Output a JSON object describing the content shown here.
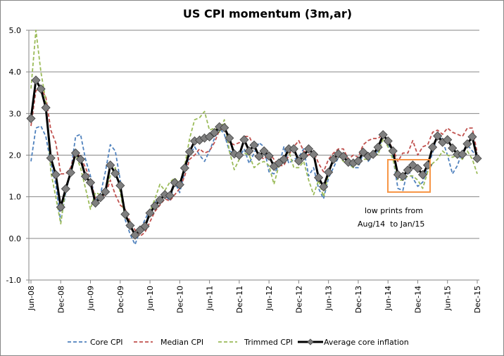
{
  "chart_data": {
    "type": "line",
    "title": "US CPI momentum (3m,ar)",
    "xlabel": "",
    "ylabel": "",
    "ylim": [
      -1.0,
      5.0
    ],
    "y_ticks": [
      "5.0",
      "4.0",
      "3.0",
      "2.0",
      "1.0",
      "0.0",
      "-1.0"
    ],
    "y_tick_values": [
      5,
      4,
      3,
      2,
      1,
      0,
      -1
    ],
    "x_ticks": [
      "Jun-08",
      "Dec-08",
      "Jun-09",
      "Dec-09",
      "Jun-10",
      "Dec-10",
      "Jun-11",
      "Dec-11",
      "Jun-12",
      "Dec-12",
      "Jun-13",
      "Dec-13",
      "Jun-14",
      "Dec-14",
      "Jun-15",
      "Dec-15"
    ],
    "x_start": "Jun-08",
    "x_end": "Dec-15",
    "frequency": "monthly",
    "grid": true,
    "legend_position": "bottom",
    "series": [
      {
        "name": "Core CPI",
        "color": "#4F81BD",
        "style": "dashed",
        "values": [
          1.85,
          2.65,
          2.7,
          2.45,
          1.8,
          1.3,
          0.4,
          1.1,
          1.6,
          2.45,
          2.5,
          1.9,
          1.5,
          0.9,
          1.05,
          1.6,
          2.25,
          2.1,
          1.4,
          0.45,
          0.1,
          -0.15,
          0.2,
          0.45,
          0.7,
          0.85,
          1.0,
          1.05,
          0.9,
          1.35,
          1.1,
          1.6,
          2.0,
          2.2,
          2.0,
          1.85,
          2.1,
          2.4,
          2.65,
          2.5,
          2.1,
          2.05,
          1.95,
          2.15,
          1.8,
          2.05,
          2.3,
          2.2,
          1.6,
          1.55,
          1.75,
          2.2,
          1.8,
          1.9,
          1.95,
          2.15,
          1.5,
          1.7,
          1.2,
          0.95,
          1.45,
          1.7,
          1.95,
          2.0,
          1.8,
          1.7,
          1.7,
          2.05,
          1.85,
          2.0,
          2.1,
          2.45,
          2.3,
          1.95,
          1.2,
          1.15,
          1.65,
          1.45,
          1.25,
          1.35,
          1.7,
          2.05,
          2.5,
          2.35,
          2.0,
          1.55,
          1.75,
          2.1,
          2.25,
          2.1,
          1.95
        ]
      },
      {
        "name": "Median CPI",
        "color": "#C0504D",
        "style": "dashed",
        "values": [
          2.7,
          3.55,
          3.6,
          3.4,
          2.6,
          2.3,
          1.55,
          1.55,
          1.7,
          2.1,
          1.95,
          1.7,
          1.4,
          0.95,
          1.0,
          1.05,
          1.4,
          1.05,
          0.8,
          0.7,
          0.4,
          0.2,
          0.05,
          0.15,
          0.4,
          0.65,
          0.8,
          0.95,
          0.9,
          1.05,
          1.2,
          1.5,
          1.9,
          2.0,
          2.15,
          2.05,
          2.1,
          2.3,
          2.6,
          2.65,
          2.3,
          2.25,
          2.3,
          2.45,
          2.45,
          2.2,
          2.0,
          1.9,
          2.05,
          1.9,
          1.75,
          1.75,
          2.0,
          2.2,
          2.35,
          2.1,
          2.0,
          2.1,
          1.8,
          1.6,
          1.9,
          2.05,
          2.15,
          2.15,
          1.9,
          2.0,
          1.95,
          2.25,
          2.35,
          2.4,
          2.4,
          2.5,
          2.35,
          2.15,
          1.85,
          2.05,
          2.05,
          2.35,
          2.0,
          2.2,
          2.25,
          2.55,
          2.6,
          2.5,
          2.65,
          2.55,
          2.5,
          2.45,
          2.65,
          2.65,
          2.05
        ]
      },
      {
        "name": "Trimmed CPI",
        "color": "#9BBB59",
        "style": "dashed",
        "values": [
          3.6,
          5.0,
          4.0,
          3.3,
          1.6,
          1.0,
          0.35,
          1.2,
          1.55,
          2.0,
          1.7,
          1.2,
          0.7,
          1.1,
          1.05,
          1.15,
          1.5,
          1.7,
          1.1,
          0.5,
          0.4,
          0.05,
          0.2,
          0.3,
          0.65,
          0.95,
          1.3,
          1.15,
          1.35,
          1.45,
          1.3,
          1.75,
          2.4,
          2.85,
          2.9,
          3.05,
          2.6,
          2.65,
          2.55,
          2.85,
          2.1,
          1.65,
          1.9,
          2.05,
          2.0,
          1.7,
          1.8,
          1.85,
          1.75,
          1.3,
          1.75,
          1.9,
          2.1,
          1.7,
          1.7,
          1.85,
          1.4,
          1.05,
          1.4,
          1.0,
          1.55,
          1.9,
          2.0,
          1.85,
          1.8,
          1.7,
          1.85,
          1.9,
          1.9,
          2.1,
          2.0,
          2.4,
          2.2,
          1.9,
          1.4,
          1.4,
          1.5,
          1.5,
          1.4,
          1.2,
          1.6,
          1.8,
          1.9,
          2.1,
          2.0,
          1.95,
          2.0,
          1.9,
          2.1,
          1.9,
          1.55
        ]
      },
      {
        "name": "Average core inflation",
        "color": "#000000",
        "style": "solid-diamond",
        "values": [
          2.88,
          3.8,
          3.59,
          3.14,
          1.93,
          1.53,
          0.75,
          1.19,
          1.58,
          2.05,
          1.9,
          1.49,
          1.34,
          0.85,
          0.98,
          1.12,
          1.76,
          1.56,
          1.27,
          0.58,
          0.31,
          0.08,
          0.2,
          0.29,
          0.61,
          0.78,
          0.92,
          1.05,
          1.03,
          1.34,
          1.29,
          1.69,
          2.08,
          2.34,
          2.36,
          2.41,
          2.44,
          2.54,
          2.68,
          2.66,
          2.41,
          2.03,
          2.0,
          2.37,
          2.1,
          2.24,
          1.97,
          2.1,
          1.98,
          1.73,
          1.81,
          1.9,
          2.15,
          2.15,
          1.86,
          1.98,
          2.15,
          2.02,
          1.46,
          1.24,
          1.59,
          1.9,
          2.03,
          1.97,
          1.83,
          1.81,
          1.86,
          2.07,
          1.97,
          2.02,
          2.19,
          2.49,
          2.34,
          2.1,
          1.53,
          1.49,
          1.64,
          1.76,
          1.68,
          1.53,
          1.76,
          2.19,
          2.46,
          2.31,
          2.37,
          2.17,
          2.02,
          2.02,
          2.27,
          2.44,
          1.92
        ]
      }
    ],
    "annotation": {
      "lines": [
        "low prints from",
        "Aug/14  to Jan/15"
      ],
      "box_from": "Aug-14",
      "box_to": "Jan-15",
      "box_color": "#F79646"
    }
  }
}
